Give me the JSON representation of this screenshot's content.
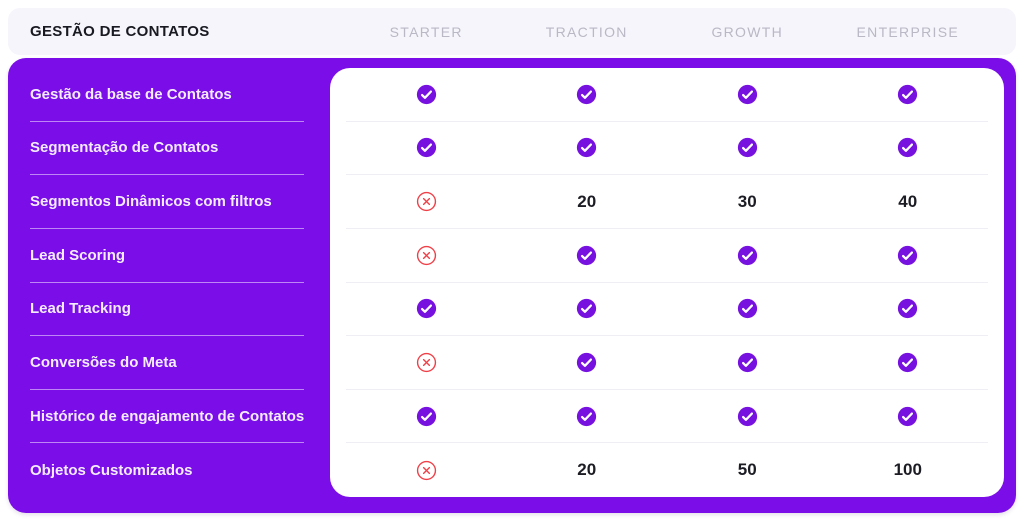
{
  "header": {
    "title": "GESTÃO DE CONTATOS",
    "plans": [
      "STARTER",
      "TRACTION",
      "GROWTH",
      "ENTERPRISE"
    ]
  },
  "table": {
    "features": [
      {
        "label": "Gestão da base de Contatos",
        "values": [
          "check",
          "check",
          "check",
          "check"
        ]
      },
      {
        "label": "Segmentação de Contatos",
        "values": [
          "check",
          "check",
          "check",
          "check"
        ]
      },
      {
        "label": "Segmentos Dinâmicos com filtros",
        "values": [
          "cross",
          "20",
          "30",
          "40"
        ]
      },
      {
        "label": "Lead Scoring",
        "values": [
          "cross",
          "check",
          "check",
          "check"
        ]
      },
      {
        "label": "Lead Tracking",
        "values": [
          "check",
          "check",
          "check",
          "check"
        ]
      },
      {
        "label": "Conversões do Meta",
        "values": [
          "cross",
          "check",
          "check",
          "check"
        ]
      },
      {
        "label": "Histórico de engajamento de Contatos",
        "values": [
          "check",
          "check",
          "check",
          "check"
        ]
      },
      {
        "label": "Objetos Customizados",
        "values": [
          "cross",
          "20",
          "50",
          "100"
        ]
      }
    ]
  },
  "icons": {
    "check": "check-circle-icon",
    "cross": "cross-circle-icon"
  },
  "colors": {
    "accent_purple": "#7B0DE8",
    "check_purple": "#7611E0",
    "cross_red": "#EF4048",
    "header_bg": "#F6F5FB",
    "header_title_text": "#191922",
    "plan_label_text": "#B9B8C4",
    "sidebar_text": "#F3ECFD",
    "value_text": "#1C1C24",
    "card_divider": "#EFEEF4"
  }
}
